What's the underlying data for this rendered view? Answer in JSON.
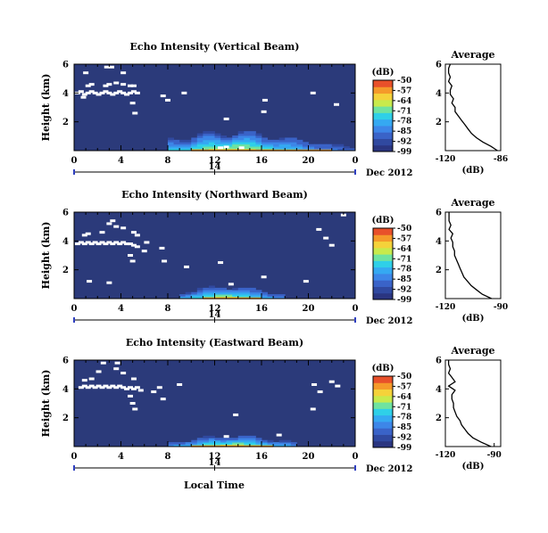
{
  "figure": {
    "xlabel": "Local Time",
    "date_label": "Dec 2012",
    "date_day": "14"
  },
  "colors": {
    "background_field": "#2b3a7a",
    "echo_gaps": "#ffffff",
    "colormap": [
      "#2a3580",
      "#3049a0",
      "#3a63c8",
      "#3d86e8",
      "#35a9f2",
      "#2fd0e8",
      "#6fe3a0",
      "#c8ea4c",
      "#f5d23a",
      "#f59a2a",
      "#e8502a"
    ]
  },
  "chart_data": [
    {
      "type": "heatmap",
      "title": "Echo Intensity (Vertical Beam)",
      "ylabel": "Height (km)",
      "xlim": [
        0,
        24
      ],
      "ylim": [
        0,
        6
      ],
      "x_ticks": [
        "0",
        "4",
        "8",
        "12",
        "16",
        "20",
        "0"
      ],
      "y_ticks": [
        "2",
        "4",
        "6"
      ],
      "colorbar": {
        "unit": "(dB)",
        "ticks": [
          "-50",
          "-57",
          "-64",
          "-71",
          "-78",
          "-85",
          "-92",
          "-99"
        ],
        "range": [
          -99,
          -50
        ]
      },
      "enhanced_echo": {
        "x_range": [
          8,
          24
        ],
        "height_max": 1.8,
        "peak_time": 13.5
      },
      "gaps": [
        [
          0.3,
          4.0
        ],
        [
          0.6,
          4.1
        ],
        [
          0.9,
          3.9
        ],
        [
          1.2,
          4.0
        ],
        [
          1.5,
          4.1
        ],
        [
          1.8,
          4.0
        ],
        [
          2.1,
          3.9
        ],
        [
          2.4,
          4.0
        ],
        [
          2.7,
          4.1
        ],
        [
          3.0,
          4.0
        ],
        [
          3.3,
          3.9
        ],
        [
          3.6,
          4.0
        ],
        [
          3.9,
          4.1
        ],
        [
          4.2,
          4.0
        ],
        [
          4.5,
          3.9
        ],
        [
          4.8,
          4.0
        ],
        [
          5.1,
          4.1
        ],
        [
          5.4,
          4.0
        ],
        [
          1.2,
          4.5
        ],
        [
          1.5,
          4.6
        ],
        [
          2.7,
          4.5
        ],
        [
          3.0,
          4.6
        ],
        [
          3.6,
          4.7
        ],
        [
          4.2,
          4.6
        ],
        [
          4.8,
          4.5
        ],
        [
          5.1,
          4.5
        ],
        [
          1.0,
          5.4
        ],
        [
          2.8,
          5.8
        ],
        [
          3.2,
          5.8
        ],
        [
          4.2,
          5.4
        ],
        [
          0.8,
          3.7
        ],
        [
          5.0,
          3.3
        ],
        [
          5.2,
          2.6
        ],
        [
          7.6,
          3.8
        ],
        [
          8.0,
          3.5
        ],
        [
          9.4,
          4.0
        ],
        [
          13.0,
          2.2
        ],
        [
          16.2,
          2.7
        ],
        [
          16.3,
          3.5
        ],
        [
          20.4,
          4.0
        ],
        [
          22.4,
          3.2
        ],
        [
          12.5,
          0.2
        ],
        [
          13.0,
          0.25
        ],
        [
          14.3,
          0.2
        ]
      ],
      "average_profile": {
        "title": "Average",
        "xlabel": "(dB)",
        "xlim": [
          -120,
          -86
        ],
        "x_ticks": [
          "-120",
          "-86"
        ],
        "y_ticks": [
          "2",
          "4",
          "6"
        ],
        "height": [
          0.0,
          0.3,
          0.6,
          0.9,
          1.2,
          1.5,
          1.8,
          2.1,
          2.4,
          2.7,
          3.0,
          3.3,
          3.6,
          3.9,
          4.2,
          4.5,
          4.8,
          5.1,
          5.4,
          5.7,
          6.0
        ],
        "value": [
          -88,
          -92,
          -97,
          -101,
          -104,
          -106,
          -108,
          -110,
          -112,
          -114,
          -114,
          -116,
          -115,
          -117,
          -117,
          -116,
          -118,
          -117,
          -118,
          -118,
          -117
        ]
      }
    },
    {
      "type": "heatmap",
      "title": "Echo Intensity (Northward Beam)",
      "ylabel": "Height (km)",
      "xlim": [
        0,
        24
      ],
      "ylim": [
        0,
        6
      ],
      "x_ticks": [
        "0",
        "4",
        "8",
        "12",
        "16",
        "20",
        "0"
      ],
      "y_ticks": [
        "2",
        "4",
        "6"
      ],
      "colorbar": {
        "unit": "(dB)",
        "ticks": [
          "-50",
          "-57",
          "-64",
          "-71",
          "-78",
          "-85",
          "-92",
          "-99"
        ],
        "range": [
          -99,
          -50
        ]
      },
      "enhanced_echo": {
        "x_range": [
          9,
          18
        ],
        "height_max": 1.2,
        "peak_time": 13.0
      },
      "gaps": [
        [
          0.3,
          3.8
        ],
        [
          0.6,
          3.9
        ],
        [
          0.9,
          3.8
        ],
        [
          1.2,
          3.9
        ],
        [
          1.5,
          3.8
        ],
        [
          1.8,
          3.9
        ],
        [
          2.1,
          3.8
        ],
        [
          2.4,
          3.9
        ],
        [
          2.7,
          3.8
        ],
        [
          3.0,
          3.9
        ],
        [
          3.3,
          3.8
        ],
        [
          3.6,
          3.9
        ],
        [
          3.9,
          3.8
        ],
        [
          4.2,
          3.9
        ],
        [
          4.5,
          3.8
        ],
        [
          4.8,
          3.8
        ],
        [
          5.1,
          3.7
        ],
        [
          5.4,
          3.6
        ],
        [
          0.9,
          4.4
        ],
        [
          1.2,
          4.5
        ],
        [
          2.4,
          4.6
        ],
        [
          3.0,
          5.2
        ],
        [
          3.3,
          5.4
        ],
        [
          3.6,
          5.0
        ],
        [
          4.2,
          4.9
        ],
        [
          5.1,
          4.6
        ],
        [
          5.4,
          4.4
        ],
        [
          4.8,
          3.0
        ],
        [
          5.0,
          2.6
        ],
        [
          6.0,
          3.3
        ],
        [
          6.2,
          3.9
        ],
        [
          7.5,
          3.5
        ],
        [
          7.7,
          2.6
        ],
        [
          9.6,
          2.2
        ],
        [
          12.5,
          2.5
        ],
        [
          13.4,
          1.0
        ],
        [
          16.2,
          1.5
        ],
        [
          19.8,
          1.2
        ],
        [
          20.9,
          4.8
        ],
        [
          21.5,
          4.2
        ],
        [
          22.0,
          3.7
        ],
        [
          23.0,
          5.8
        ],
        [
          1.3,
          1.2
        ],
        [
          3.0,
          1.1
        ]
      ],
      "average_profile": {
        "title": "Average",
        "xlabel": "(dB)",
        "xlim": [
          -120,
          -90
        ],
        "x_ticks": [
          "-120",
          "-90"
        ],
        "y_ticks": [
          "2",
          "4",
          "6"
        ],
        "height": [
          0.0,
          0.3,
          0.6,
          0.9,
          1.2,
          1.5,
          1.8,
          2.1,
          2.4,
          2.7,
          3.0,
          3.3,
          3.6,
          3.9,
          4.2,
          4.5,
          4.8,
          5.1,
          5.4,
          5.7,
          6.0
        ],
        "value": [
          -95,
          -100,
          -103,
          -106,
          -108,
          -110,
          -111,
          -112,
          -113,
          -114,
          -115,
          -115,
          -116,
          -116,
          -117,
          -116,
          -118,
          -117,
          -118,
          -118,
          -118
        ]
      }
    },
    {
      "type": "heatmap",
      "title": "Echo Intensity (Eastward Beam)",
      "ylabel": "Height (km)",
      "xlim": [
        0,
        24
      ],
      "ylim": [
        0,
        6
      ],
      "x_ticks": [
        "0",
        "4",
        "8",
        "12",
        "16",
        "20",
        "0"
      ],
      "y_ticks": [
        "2",
        "4",
        "6"
      ],
      "colorbar": {
        "unit": "(dB)",
        "ticks": [
          "-50",
          "-57",
          "-64",
          "-71",
          "-78",
          "-85",
          "-92",
          "-99"
        ],
        "range": [
          -99,
          -50
        ]
      },
      "enhanced_echo": {
        "x_range": [
          8,
          19
        ],
        "height_max": 1.0,
        "peak_time": 13.5
      },
      "gaps": [
        [
          0.6,
          4.1
        ],
        [
          0.9,
          4.2
        ],
        [
          1.2,
          4.1
        ],
        [
          1.5,
          4.2
        ],
        [
          1.8,
          4.1
        ],
        [
          2.1,
          4.2
        ],
        [
          2.4,
          4.1
        ],
        [
          2.7,
          4.2
        ],
        [
          3.0,
          4.1
        ],
        [
          3.3,
          4.2
        ],
        [
          3.6,
          4.1
        ],
        [
          3.9,
          4.2
        ],
        [
          4.2,
          4.1
        ],
        [
          4.5,
          4.0
        ],
        [
          4.8,
          4.1
        ],
        [
          5.1,
          4.0
        ],
        [
          5.4,
          4.1
        ],
        [
          5.7,
          3.9
        ],
        [
          0.9,
          4.6
        ],
        [
          1.5,
          4.7
        ],
        [
          2.1,
          5.2
        ],
        [
          3.6,
          5.4
        ],
        [
          4.2,
          5.1
        ],
        [
          5.1,
          4.7
        ],
        [
          4.8,
          3.5
        ],
        [
          5.0,
          3.0
        ],
        [
          5.2,
          2.6
        ],
        [
          6.8,
          3.8
        ],
        [
          7.3,
          4.1
        ],
        [
          7.6,
          3.3
        ],
        [
          9.0,
          4.3
        ],
        [
          13.8,
          2.2
        ],
        [
          20.5,
          4.3
        ],
        [
          21.0,
          3.8
        ],
        [
          22.0,
          4.5
        ],
        [
          22.5,
          4.2
        ],
        [
          20.4,
          2.6
        ],
        [
          13.0,
          0.7
        ],
        [
          17.5,
          0.8
        ],
        [
          2.5,
          5.8
        ],
        [
          3.7,
          5.8
        ]
      ],
      "average_profile": {
        "title": "Average",
        "xlabel": "(dB)",
        "xlim": [
          -120,
          -86
        ],
        "x_ticks": [
          "-120",
          "-90"
        ],
        "y_ticks": [
          "2",
          "4",
          "6"
        ],
        "height": [
          0.0,
          0.3,
          0.6,
          0.9,
          1.2,
          1.5,
          1.8,
          2.1,
          2.4,
          2.7,
          3.0,
          3.3,
          3.6,
          3.9,
          4.2,
          4.5,
          4.8,
          5.1,
          5.4,
          5.7,
          6.0
        ],
        "value": [
          -92,
          -98,
          -103,
          -106,
          -108,
          -110,
          -111,
          -113,
          -114,
          -115,
          -115,
          -116,
          -116,
          -114,
          -118,
          -114,
          -116,
          -118,
          -117,
          -118,
          -118
        ]
      }
    }
  ]
}
